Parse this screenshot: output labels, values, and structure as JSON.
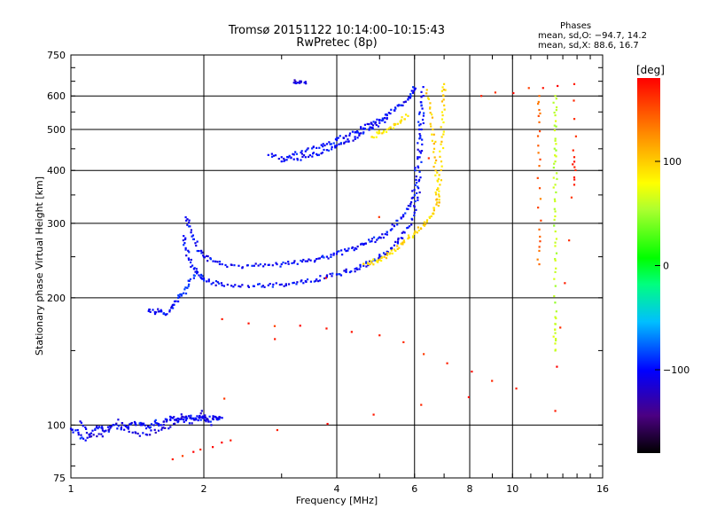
{
  "header": {
    "title": "Tromsø 20151122 10:14:00–10:15:43",
    "subtitle": "RwPretec (8p)"
  },
  "phases": {
    "title": "Phases",
    "o_line": "mean, sd,O: −94.7, 14.2",
    "x_line": "mean, sd,X:  88.6, 16.7"
  },
  "colorbar": {
    "unit": "[deg]",
    "ticks": [
      {
        "value": 100,
        "label": "100"
      },
      {
        "value": 0,
        "label": "0"
      },
      {
        "value": -100,
        "label": "−100"
      }
    ],
    "range": [
      -180,
      180
    ]
  },
  "chart_data": {
    "type": "scatter",
    "title": "Tromsø 20151122 10:14:00–10:15:43",
    "subtitle": "RwPretec (8p)",
    "xlabel": "Frequency [MHz]",
    "ylabel": "Stationary phase Virtual Height [km]",
    "x_scale": "log",
    "y_scale": "log",
    "xlim": [
      1,
      16
    ],
    "ylim": [
      75,
      750
    ],
    "grid": true,
    "x_ticks": [
      {
        "v": 1,
        "l": "1"
      },
      {
        "v": 2,
        "l": "2"
      },
      {
        "v": 4,
        "l": "4"
      },
      {
        "v": 6,
        "l": "6"
      },
      {
        "v": 8,
        "l": "8"
      },
      {
        "v": 10,
        "l": "10"
      },
      {
        "v": 16,
        "l": "16"
      }
    ],
    "x_grid": [
      2,
      4,
      6,
      8,
      10
    ],
    "y_ticks": [
      {
        "v": 75,
        "l": "75"
      },
      {
        "v": 100,
        "l": "100"
      },
      {
        "v": 200,
        "l": "200"
      },
      {
        "v": 300,
        "l": "300"
      },
      {
        "v": 400,
        "l": "400"
      },
      {
        "v": 500,
        "l": "500"
      },
      {
        "v": 600,
        "l": "600"
      },
      {
        "v": 750,
        "l": "750"
      }
    ],
    "y_grid": [
      100,
      200,
      300,
      400,
      500,
      600
    ],
    "color_value": "phase [deg]",
    "series": [
      {
        "segment": "low-layer",
        "phase": -100,
        "points": [
          [
            1.0,
            98
          ],
          [
            1.04,
            96
          ],
          [
            1.08,
            92
          ],
          [
            1.12,
            97
          ],
          [
            1.16,
            99
          ],
          [
            1.2,
            97
          ],
          [
            1.25,
            100
          ],
          [
            1.3,
            98
          ],
          [
            1.35,
            99
          ],
          [
            1.4,
            101
          ],
          [
            1.45,
            100
          ],
          [
            1.5,
            99
          ],
          [
            1.55,
            102
          ],
          [
            1.6,
            100
          ],
          [
            1.65,
            103
          ],
          [
            1.7,
            104
          ],
          [
            1.75,
            102
          ],
          [
            1.8,
            103
          ],
          [
            1.85,
            105
          ],
          [
            1.9,
            103
          ],
          [
            1.95,
            104
          ],
          [
            2.0,
            104
          ],
          [
            2.05,
            102
          ],
          [
            2.1,
            105
          ],
          [
            2.15,
            103
          ],
          [
            2.2,
            104
          ]
        ]
      },
      {
        "segment": "low-layer-scatter",
        "phase": -110,
        "points": [
          [
            1.05,
            102
          ],
          [
            1.1,
            95
          ],
          [
            1.18,
            94
          ],
          [
            1.28,
            103
          ],
          [
            1.38,
            96
          ],
          [
            1.48,
            95
          ],
          [
            1.58,
            97
          ],
          [
            1.68,
            99
          ],
          [
            1.78,
            106
          ],
          [
            1.88,
            101
          ],
          [
            1.98,
            108
          ],
          [
            2.08,
            100
          ]
        ]
      },
      {
        "segment": "E-step",
        "phase": -100,
        "points": [
          [
            1.5,
            186
          ],
          [
            1.55,
            185
          ],
          [
            1.6,
            187
          ],
          [
            1.65,
            183
          ],
          [
            1.7,
            192
          ],
          [
            1.75,
            196
          ]
        ]
      },
      {
        "segment": "F-low-lower-trace",
        "phase": -100,
        "points": [
          [
            1.8,
            280
          ],
          [
            1.82,
            262
          ],
          [
            1.85,
            246
          ],
          [
            1.9,
            234
          ],
          [
            1.95,
            226
          ],
          [
            2.0,
            222
          ],
          [
            2.1,
            217
          ],
          [
            2.2,
            214
          ],
          [
            2.4,
            213
          ],
          [
            2.6,
            213
          ],
          [
            2.8,
            214
          ],
          [
            3.0,
            215
          ],
          [
            3.2,
            217
          ],
          [
            3.4,
            219
          ],
          [
            3.6,
            221
          ],
          [
            3.8,
            224
          ],
          [
            4.0,
            227
          ],
          [
            4.2,
            230
          ],
          [
            4.4,
            234
          ],
          [
            4.6,
            238
          ],
          [
            4.8,
            243
          ],
          [
            5.0,
            250
          ],
          [
            5.2,
            257
          ],
          [
            5.4,
            266
          ],
          [
            5.6,
            277
          ],
          [
            5.8,
            293
          ],
          [
            6.0,
            318
          ],
          [
            6.1,
            345
          ],
          [
            6.15,
            380
          ],
          [
            6.2,
            440
          ],
          [
            6.22,
            500
          ],
          [
            6.25,
            560
          ],
          [
            6.28,
            630
          ]
        ]
      },
      {
        "segment": "F-low-upper-trace",
        "phase": -100,
        "points": [
          [
            1.82,
            310
          ],
          [
            1.86,
            295
          ],
          [
            1.9,
            275
          ],
          [
            1.95,
            258
          ],
          [
            2.0,
            250
          ],
          [
            2.1,
            244
          ],
          [
            2.2,
            240
          ],
          [
            2.4,
            238
          ],
          [
            2.6,
            238
          ],
          [
            2.8,
            239
          ],
          [
            3.0,
            240
          ],
          [
            3.2,
            242
          ],
          [
            3.4,
            244
          ],
          [
            3.6,
            247
          ],
          [
            3.8,
            250
          ],
          [
            4.0,
            254
          ],
          [
            4.2,
            258
          ],
          [
            4.4,
            262
          ],
          [
            4.6,
            267
          ],
          [
            4.8,
            272
          ],
          [
            5.0,
            278
          ],
          [
            5.2,
            286
          ],
          [
            5.4,
            296
          ],
          [
            5.6,
            308
          ],
          [
            5.8,
            324
          ],
          [
            5.95,
            345
          ],
          [
            6.05,
            380
          ],
          [
            6.1,
            430
          ],
          [
            6.15,
            500
          ],
          [
            6.2,
            580
          ]
        ]
      },
      {
        "segment": "F-high-trace",
        "phase": -100,
        "points": [
          [
            2.8,
            435
          ],
          [
            3.0,
            430
          ],
          [
            3.2,
            436
          ],
          [
            3.4,
            444
          ],
          [
            3.6,
            452
          ],
          [
            3.8,
            462
          ],
          [
            4.0,
            472
          ],
          [
            4.2,
            482
          ],
          [
            4.4,
            492
          ],
          [
            4.6,
            503
          ],
          [
            4.8,
            515
          ],
          [
            5.0,
            527
          ],
          [
            5.2,
            540
          ],
          [
            5.4,
            555
          ],
          [
            5.6,
            570
          ],
          [
            5.8,
            588
          ],
          [
            5.95,
            610
          ],
          [
            6.0,
            625
          ]
        ]
      },
      {
        "segment": "F-high-lower",
        "phase": -100,
        "points": [
          [
            3.0,
            420
          ],
          [
            3.2,
            425
          ],
          [
            3.4,
            430
          ],
          [
            3.6,
            437
          ],
          [
            3.8,
            447
          ],
          [
            4.0,
            458
          ],
          [
            4.2,
            468
          ],
          [
            4.4,
            480
          ],
          [
            4.6,
            492
          ],
          [
            4.8,
            505
          ],
          [
            5.0,
            518
          ],
          [
            5.2,
            532
          ]
        ]
      },
      {
        "segment": "x-mode-trace",
        "phase": 95,
        "points": [
          [
            4.6,
            240
          ],
          [
            4.8,
            242
          ],
          [
            5.0,
            246
          ],
          [
            5.2,
            252
          ],
          [
            5.4,
            260
          ],
          [
            5.6,
            268
          ],
          [
            5.8,
            276
          ],
          [
            6.0,
            284
          ],
          [
            6.2,
            292
          ],
          [
            6.4,
            302
          ],
          [
            6.6,
            316
          ],
          [
            6.75,
            336
          ],
          [
            6.85,
            370
          ],
          [
            6.9,
            420
          ],
          [
            6.92,
            480
          ],
          [
            6.95,
            540
          ],
          [
            6.98,
            600
          ],
          [
            7.0,
            640
          ]
        ]
      },
      {
        "segment": "x-mode-upper",
        "phase": 90,
        "points": [
          [
            4.8,
            480
          ],
          [
            5.0,
            490
          ],
          [
            5.2,
            500
          ],
          [
            5.4,
            512
          ],
          [
            5.6,
            524
          ],
          [
            5.8,
            538
          ]
        ]
      },
      {
        "segment": "x-mode-upper-branch",
        "phase": 100,
        "points": [
          [
            6.4,
            620
          ],
          [
            6.5,
            560
          ],
          [
            6.6,
            500
          ],
          [
            6.65,
            450
          ],
          [
            6.7,
            400
          ],
          [
            6.75,
            360
          ],
          [
            6.8,
            330
          ]
        ]
      },
      {
        "segment": "E-rise",
        "phase": -90,
        "points": [
          [
            1.9,
            226
          ],
          [
            1.85,
            215
          ],
          [
            1.8,
            205
          ],
          [
            1.75,
            200
          ]
        ]
      },
      {
        "segment": "isolated-high",
        "phase": -110,
        "points": [
          [
            3.2,
            645
          ],
          [
            3.3,
            650
          ],
          [
            3.4,
            648
          ]
        ]
      },
      {
        "segment": "column-12-5",
        "phase": 60,
        "points": [
          [
            12.5,
            600
          ],
          [
            12.5,
            540
          ],
          [
            12.5,
            470
          ],
          [
            12.5,
            420
          ],
          [
            12.5,
            370
          ],
          [
            12.5,
            320
          ],
          [
            12.5,
            270
          ],
          [
            12.5,
            230
          ],
          [
            12.5,
            180
          ],
          [
            12.5,
            165
          ],
          [
            12.5,
            150
          ]
        ]
      },
      {
        "segment": "column-11-5",
        "phase": 140,
        "points": [
          [
            11.5,
            600
          ],
          [
            11.5,
            520
          ],
          [
            11.5,
            410
          ],
          [
            11.5,
            290
          ],
          [
            11.5,
            240
          ]
        ]
      },
      {
        "segment": "isolated-dots",
        "phase": 170,
        "points": [
          [
            2.2,
            178
          ],
          [
            5.0,
            163
          ],
          [
            10.2,
            122
          ],
          [
            2.3,
            92
          ],
          [
            1.7,
            83
          ],
          [
            8.5,
            600
          ],
          [
            13.8,
            640
          ],
          [
            13.8,
            370
          ],
          [
            13.8,
            430
          ],
          [
            12.5,
            108
          ]
        ]
      }
    ]
  }
}
